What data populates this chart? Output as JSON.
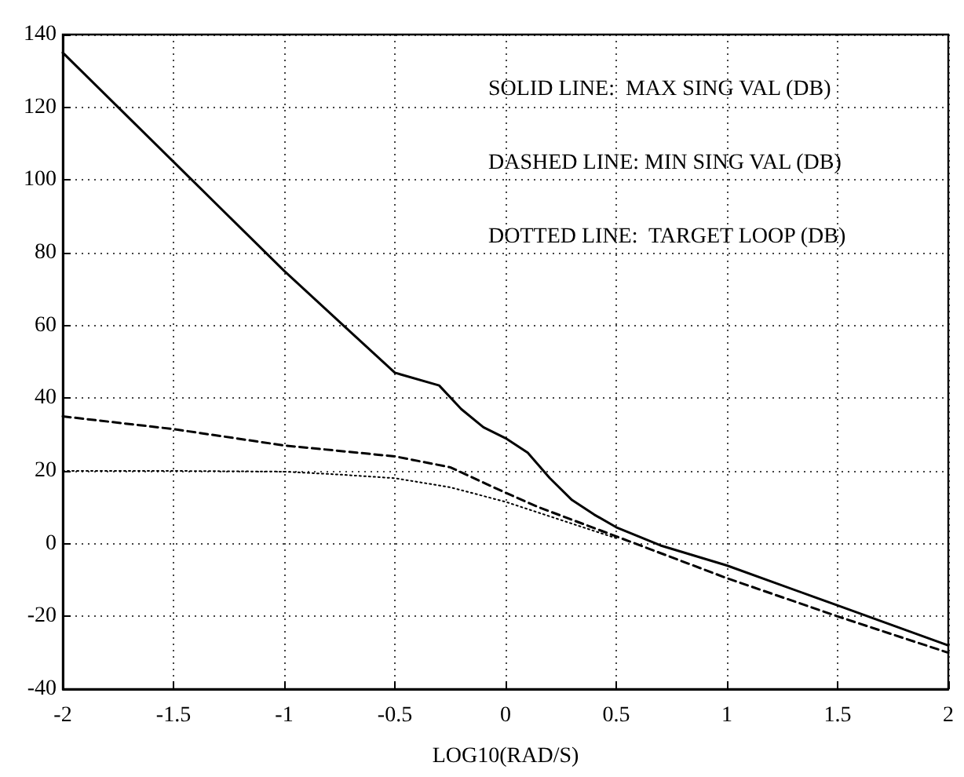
{
  "chart_data": {
    "type": "line",
    "xlabel": "LOG10(RAD/S)",
    "annotations": [
      "SOLID LINE:  MAX SING VAL (DB)",
      "DASHED LINE: MIN SING VAL (DB)",
      "DOTTED LINE:  TARGET LOOP (DB)"
    ],
    "xlim": [
      -2,
      2
    ],
    "xticks": [
      -2,
      -1.5,
      -1,
      -0.5,
      0,
      0.5,
      1,
      1.5,
      2
    ],
    "ylim": [
      -40,
      140
    ],
    "yticks": [
      -40,
      -20,
      0,
      20,
      40,
      60,
      80,
      100,
      120,
      140
    ],
    "grid": true,
    "marker": "none",
    "series": [
      {
        "color": "#000000",
        "line_style": "solid",
        "x": [
          -2,
          -1.5,
          -1,
          -0.75,
          -0.5,
          -0.3,
          -0.2,
          -0.1,
          0,
          0.1,
          0.2,
          0.3,
          0.4,
          0.5,
          0.7,
          1,
          1.5,
          2
        ],
        "values": [
          135,
          105,
          75,
          61,
          47,
          43.5,
          37,
          32,
          29,
          25,
          18,
          12,
          8,
          4.5,
          -0.5,
          -6,
          -17,
          -28
        ]
      },
      {
        "color": "#000000",
        "line_style": "dashed",
        "x": [
          -2,
          -1.5,
          -1,
          -0.5,
          -0.25,
          0,
          0.15,
          0.5,
          1,
          1.5,
          2
        ],
        "values": [
          35,
          31.5,
          27,
          24,
          21,
          14,
          10,
          2,
          -9.5,
          -20,
          -30
        ]
      },
      {
        "color": "#000000",
        "line_style": "dotted",
        "x": [
          -2,
          -1.5,
          -1,
          -0.75,
          -0.5,
          -0.25,
          0,
          0.25,
          0.5
        ],
        "values": [
          20,
          20,
          19.8,
          19,
          18,
          15.5,
          11.5,
          6.5,
          1.5
        ]
      }
    ]
  }
}
